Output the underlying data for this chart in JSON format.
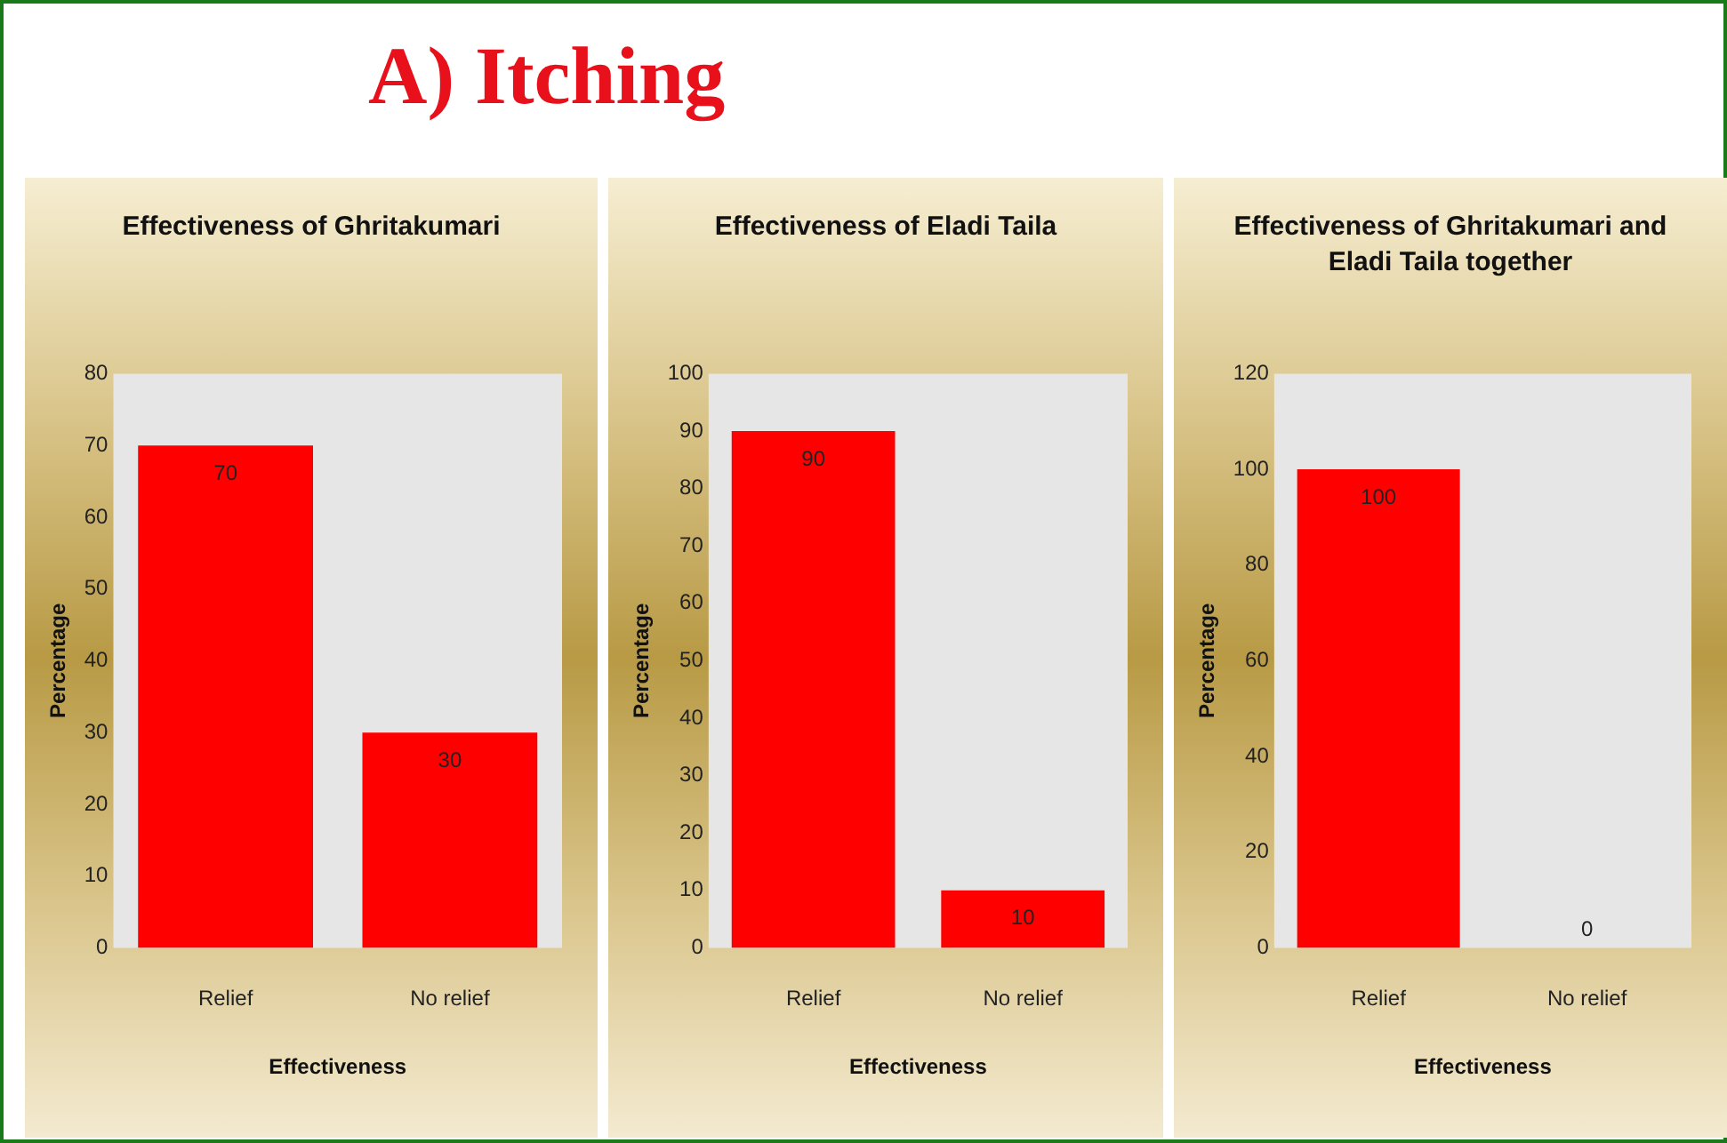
{
  "chart_data": [
    {
      "type": "other",
      "title": "A) Itching"
    },
    {
      "type": "bar",
      "title": "Effectiveness of Ghritakumari",
      "xlabel": "Effectiveness",
      "ylabel": "Percentage",
      "categories": [
        "Relief",
        "No relief"
      ],
      "values": [
        70,
        30
      ],
      "color": "#ff0000",
      "ylim": [
        0,
        80
      ],
      "yticks": [
        0,
        10,
        20,
        30,
        40,
        50,
        60,
        70,
        80
      ],
      "data_labels": true
    },
    {
      "type": "bar",
      "title": "Effectiveness of Eladi Taila",
      "xlabel": "Effectiveness",
      "ylabel": "Percentage",
      "categories": [
        "Relief",
        "No relief"
      ],
      "values": [
        90,
        10
      ],
      "color": "#ff0000",
      "ylim": [
        0,
        100
      ],
      "yticks": [
        0,
        10,
        20,
        30,
        40,
        50,
        60,
        70,
        80,
        90,
        100
      ],
      "data_labels": true
    },
    {
      "type": "bar",
      "title": "Effectiveness of Ghritakumari and Eladi Taila together",
      "xlabel": "Effectiveness",
      "ylabel": "Percentage",
      "categories": [
        "Relief",
        "No relief"
      ],
      "values": [
        100,
        0
      ],
      "color": "#ff0000",
      "ylim": [
        0,
        120
      ],
      "yticks": [
        0,
        20,
        40,
        60,
        80,
        100,
        120
      ],
      "data_labels": true
    }
  ]
}
